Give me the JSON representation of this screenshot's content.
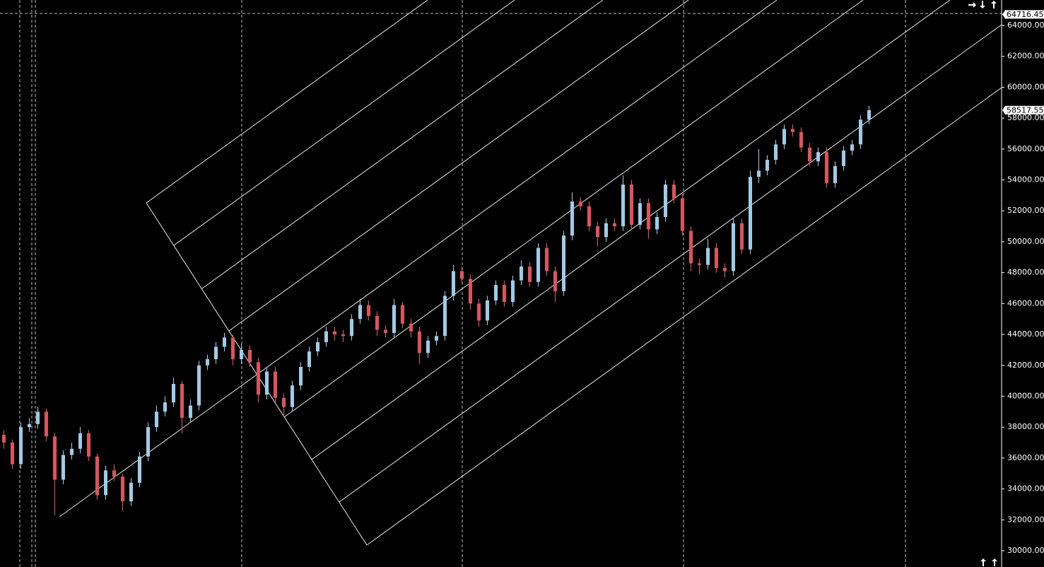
{
  "chart_data": {
    "type": "candlestick",
    "up_color": "#9dcbea",
    "down_color": "#e0525a",
    "open": [
      37500,
      37000,
      35600,
      38000,
      38200,
      39000,
      37400,
      34600,
      36200,
      36600,
      37600,
      36100,
      33600,
      35200,
      34800,
      33200,
      34400,
      36100,
      38000,
      39000,
      39600,
      40800,
      38600,
      39400,
      42000,
      42400,
      43200,
      43800,
      42400,
      43000,
      42200,
      40100,
      41600,
      39900,
      39300,
      40700,
      41900,
      42900,
      43500,
      44200,
      44000,
      43900,
      45000,
      45900,
      45200,
      44300,
      44100,
      45900,
      44700,
      44200,
      42800,
      43600,
      43900,
      46500,
      48100,
      47600,
      46000,
      44900,
      46200,
      47200,
      46100,
      47500,
      48400,
      47400,
      49600,
      48100,
      46800,
      50400,
      52600,
      52300,
      51000,
      50300,
      51200,
      51000,
      53700,
      51100,
      52500,
      50800,
      51600,
      53700,
      52800,
      50700,
      48600,
      48500,
      49600,
      48300,
      48100,
      51200,
      49500,
      54200,
      54600,
      55300,
      56300,
      57300,
      57100,
      56100,
      55200,
      55800,
      53800,
      54900,
      55900,
      56300,
      57900
    ],
    "high": [
      37800,
      37200,
      38300,
      38600,
      39300,
      39200,
      37600,
      36500,
      37000,
      38000,
      37800,
      36300,
      35500,
      35600,
      35000,
      34700,
      36400,
      38300,
      39400,
      40000,
      41200,
      41000,
      39800,
      42300,
      42700,
      43500,
      44100,
      44000,
      43400,
      43300,
      42500,
      41900,
      41900,
      40200,
      41000,
      42200,
      43200,
      43800,
      44500,
      44500,
      44300,
      45300,
      46300,
      46200,
      45500,
      44600,
      46300,
      46100,
      45000,
      44500,
      43900,
      44200,
      46800,
      48500,
      48400,
      47900,
      46300,
      46500,
      47500,
      47500,
      47800,
      48800,
      48700,
      49900,
      49900,
      48400,
      50700,
      53200,
      52900,
      52600,
      51300,
      51500,
      51500,
      54300,
      54000,
      52800,
      52800,
      51900,
      54000,
      54000,
      53100,
      51000,
      48900,
      50200,
      49900,
      48600,
      51500,
      51500,
      54600,
      56000,
      55600,
      56600,
      57600,
      57600,
      57400,
      56400,
      56100,
      56100,
      55200,
      56200,
      56600,
      58200,
      58800
    ],
    "low": [
      36600,
      35300,
      35300,
      37700,
      37900,
      37100,
      32300,
      34300,
      35900,
      36300,
      35800,
      33300,
      33300,
      34500,
      32600,
      32900,
      34100,
      35800,
      37700,
      38700,
      39300,
      37600,
      38300,
      39100,
      41700,
      42100,
      42900,
      42000,
      42100,
      41900,
      39600,
      39800,
      39600,
      38700,
      39000,
      40400,
      41600,
      42600,
      43200,
      43600,
      43500,
      43600,
      44700,
      44900,
      43900,
      43800,
      43800,
      44400,
      43800,
      42100,
      42500,
      43300,
      43600,
      46200,
      47300,
      45600,
      44500,
      44600,
      45900,
      45800,
      45800,
      47200,
      47100,
      47100,
      47800,
      46100,
      46500,
      50100,
      52000,
      50700,
      49700,
      50000,
      50700,
      50700,
      50800,
      50800,
      50200,
      50500,
      51300,
      52500,
      50400,
      48100,
      47900,
      48200,
      48000,
      47700,
      47800,
      49200,
      49200,
      53800,
      54300,
      55000,
      56000,
      56800,
      55800,
      54900,
      54900,
      53500,
      53500,
      54600,
      55600,
      56000,
      57600
    ],
    "close": [
      37000,
      35600,
      38000,
      38200,
      39000,
      37400,
      34600,
      36200,
      36600,
      37600,
      36100,
      33600,
      35200,
      34800,
      33200,
      34400,
      36100,
      38000,
      39000,
      39600,
      40800,
      38600,
      39400,
      42000,
      42400,
      43200,
      43800,
      42400,
      43000,
      42200,
      40100,
      41600,
      39900,
      39300,
      40700,
      41900,
      42900,
      43500,
      44200,
      44000,
      43900,
      45000,
      45900,
      45200,
      44300,
      44100,
      45900,
      44700,
      44200,
      42800,
      43600,
      43900,
      46500,
      48100,
      47600,
      46000,
      44900,
      46200,
      47200,
      46100,
      47500,
      48400,
      47400,
      49600,
      48100,
      46800,
      50400,
      52600,
      52300,
      51000,
      50300,
      51200,
      51000,
      53700,
      51100,
      52500,
      50800,
      51600,
      53700,
      52800,
      50700,
      48600,
      48500,
      49600,
      48300,
      48100,
      51200,
      49500,
      54200,
      54600,
      55300,
      56300,
      57300,
      57100,
      56100,
      55200,
      55800,
      53800,
      54900,
      55900,
      56300,
      57900,
      58517.55
    ],
    "crosshair_price": 64716.45,
    "ylim": [
      28948,
      65647
    ],
    "yticks": [
      {
        "value": 30000,
        "label": "30000.00"
      },
      {
        "value": 32000,
        "label": "32000.00"
      },
      {
        "value": 34000,
        "label": "34000.00"
      },
      {
        "value": 36000,
        "label": "36000.00"
      },
      {
        "value": 38000,
        "label": "38000.00"
      },
      {
        "value": 40000,
        "label": "40000.00"
      },
      {
        "value": 42000,
        "label": "42000.00"
      },
      {
        "value": 44000,
        "label": "44000.00"
      },
      {
        "value": 46000,
        "label": "46000.00"
      },
      {
        "value": 48000,
        "label": "48000.00"
      },
      {
        "value": 50000,
        "label": "50000.00"
      },
      {
        "value": 52000,
        "label": "52000.00"
      },
      {
        "value": 54000,
        "label": "54000.00"
      },
      {
        "value": 56000,
        "label": "56000.00"
      },
      {
        "value": 58000,
        "label": "58000.00"
      },
      {
        "value": 60000,
        "label": "60000.00"
      },
      {
        "value": 62000,
        "label": "62000.00"
      },
      {
        "value": 64000,
        "label": "64000.00"
      }
    ]
  }
}
